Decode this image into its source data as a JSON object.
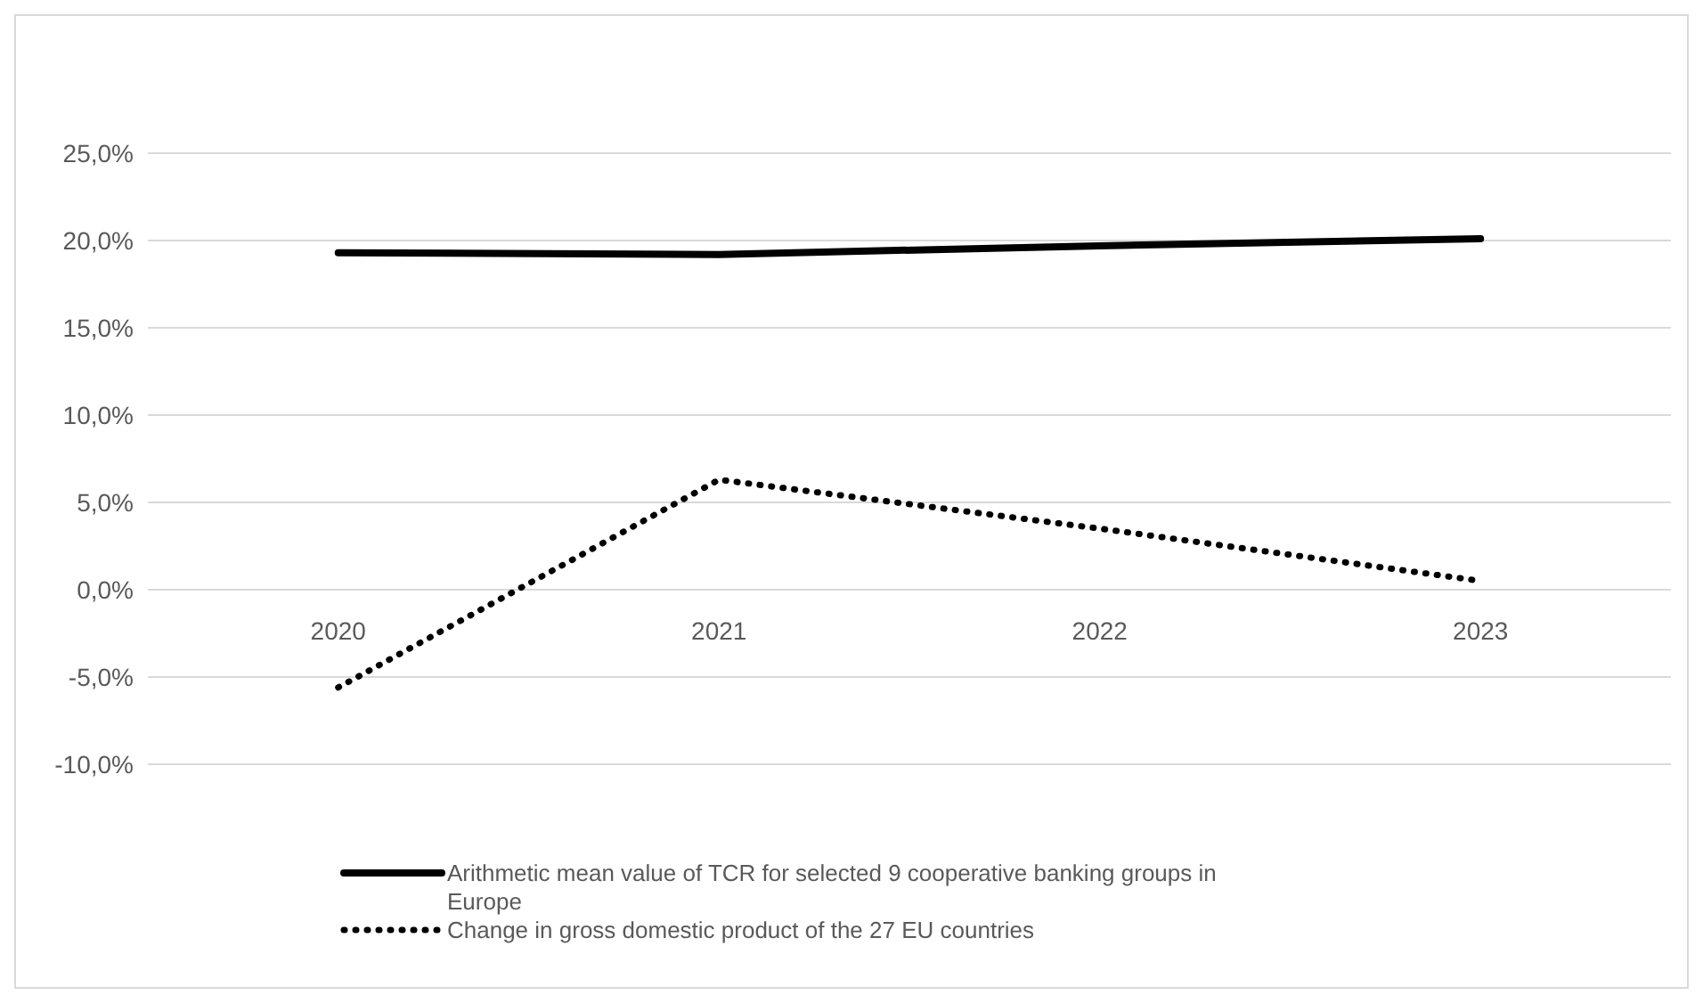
{
  "chart_data": {
    "type": "line",
    "categories": [
      "2020",
      "2021",
      "2022",
      "2023"
    ],
    "series": [
      {
        "name": "Arithmetic mean value of TCR for selected 9 cooperative banking groups in Europe",
        "color": "#000000",
        "values": [
          19.3,
          19.2,
          19.7,
          20.1
        ],
        "line_style": "solid"
      },
      {
        "name": "Change in gross domestic product of the 27 EU countries",
        "color": "#000000",
        "values": [
          -5.6,
          6.3,
          3.5,
          0.5
        ],
        "line_style": "dotted"
      }
    ],
    "ylim": [
      -10,
      25
    ],
    "yticks": [
      {
        "value": -10,
        "label": "-10,0%"
      },
      {
        "value": -5,
        "label": "-5,0%"
      },
      {
        "value": 0,
        "label": "0,0%"
      },
      {
        "value": 5,
        "label": "5,0%"
      },
      {
        "value": 10,
        "label": "10,0%"
      },
      {
        "value": 15,
        "label": "15,0%"
      },
      {
        "value": 20,
        "label": "20,0%"
      },
      {
        "value": 25,
        "label": "25,0%"
      }
    ],
    "grid": "y",
    "legend": "bottom"
  }
}
